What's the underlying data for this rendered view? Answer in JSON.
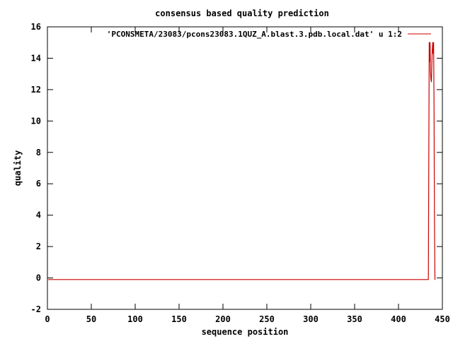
{
  "chart_data": {
    "type": "line",
    "title": "consensus based quality prediction",
    "xlabel": "sequence position",
    "ylabel": "quality",
    "xlim": [
      0,
      450
    ],
    "ylim": [
      -2,
      16
    ],
    "xticks": [
      0,
      50,
      100,
      150,
      200,
      250,
      300,
      350,
      400,
      450
    ],
    "yticks": [
      -2,
      0,
      2,
      4,
      6,
      8,
      10,
      12,
      14,
      16
    ],
    "grid": false,
    "legend_position": "top-right",
    "colors": {
      "series": "#cc0000",
      "axes": "#000000",
      "background": "#ffffff"
    },
    "series": [
      {
        "name": "'PCONSMETA/23083/pcons23083.1QUZ_A.blast.3.pdb.local.dat' u 1:2",
        "x": [
          1,
          50,
          100,
          150,
          200,
          250,
          300,
          350,
          400,
          433,
          434,
          434.5,
          435,
          435.5,
          436,
          436.5,
          437,
          437.5,
          438,
          438.5,
          439,
          439.5,
          440,
          440.5,
          441,
          441.5,
          442
        ],
        "y": [
          -0.1,
          -0.1,
          -0.1,
          -0.1,
          -0.1,
          -0.1,
          -0.1,
          -0.1,
          -0.1,
          -0.1,
          -0.1,
          7.5,
          15,
          13.8,
          15,
          13,
          12.6,
          12.5,
          13.5,
          14.5,
          15,
          14.3,
          15,
          11,
          3.8,
          -0.1,
          -0.1
        ]
      }
    ]
  }
}
